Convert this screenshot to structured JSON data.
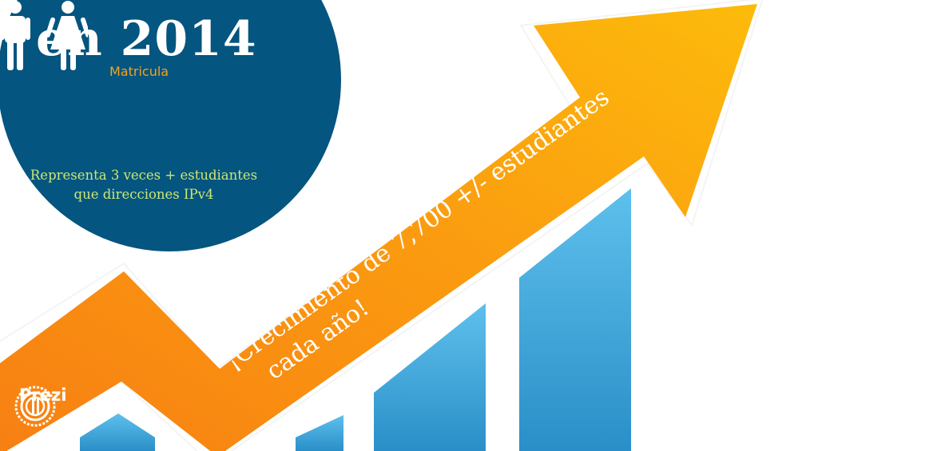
{
  "slide": {
    "year_title": "en 2014",
    "enrollment_label": "Matricula",
    "caption_line1": "Representa 3 veces + estudiantes",
    "caption_line2": "que direcciones IPv4",
    "arrow_line1": "¡Crecimiento de 7,700 +/- estudiantes",
    "arrow_line2": "cada año!",
    "logo_text": "Prezi"
  },
  "icons": [
    "male-person-icon",
    "female-person-icon",
    "prezi-logo-icon"
  ],
  "colors": {
    "circle": "#04557f",
    "arrow_orange": "#f98f14",
    "arrow_gold": "#fbb710",
    "bar_light": "#5ec0ec",
    "bar_dark": "#2a8fc8",
    "enrollment_label": "#f7a21b",
    "caption": "#cde676"
  }
}
